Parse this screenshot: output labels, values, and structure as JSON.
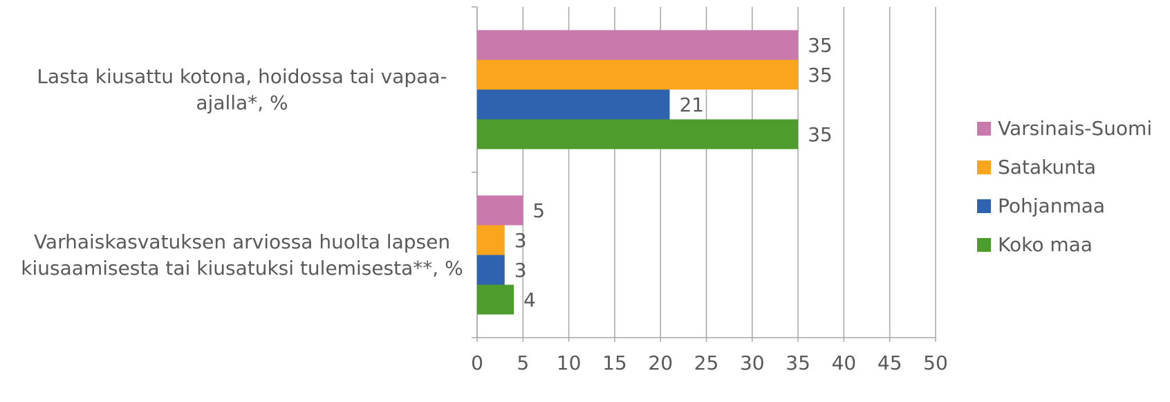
{
  "chart_data": {
    "type": "bar",
    "orientation": "horizontal",
    "categories": [
      "Lasta kiusattu kotona, hoidossa tai vapaa-ajalla*, %",
      "Varhaiskasvatuksen arviossa huolta lapsen kiusaamisesta tai kiusatuksi tulemisesta**, %"
    ],
    "series": [
      {
        "name": "Varsinais-Suomi",
        "color": "#c979ac",
        "values": [
          35,
          5
        ]
      },
      {
        "name": "Satakunta",
        "color": "#f9a61c",
        "values": [
          35,
          3
        ]
      },
      {
        "name": "Pohjanmaa",
        "color": "#2f63b0",
        "values": [
          21,
          3
        ]
      },
      {
        "name": "Koko maa",
        "color": "#4e9b2e",
        "values": [
          35,
          4
        ]
      }
    ],
    "xlim": [
      0,
      50
    ],
    "xticks": [
      0,
      5,
      10,
      15,
      20,
      25,
      30,
      35,
      40,
      45,
      50
    ],
    "grid": true,
    "legend": "right"
  }
}
